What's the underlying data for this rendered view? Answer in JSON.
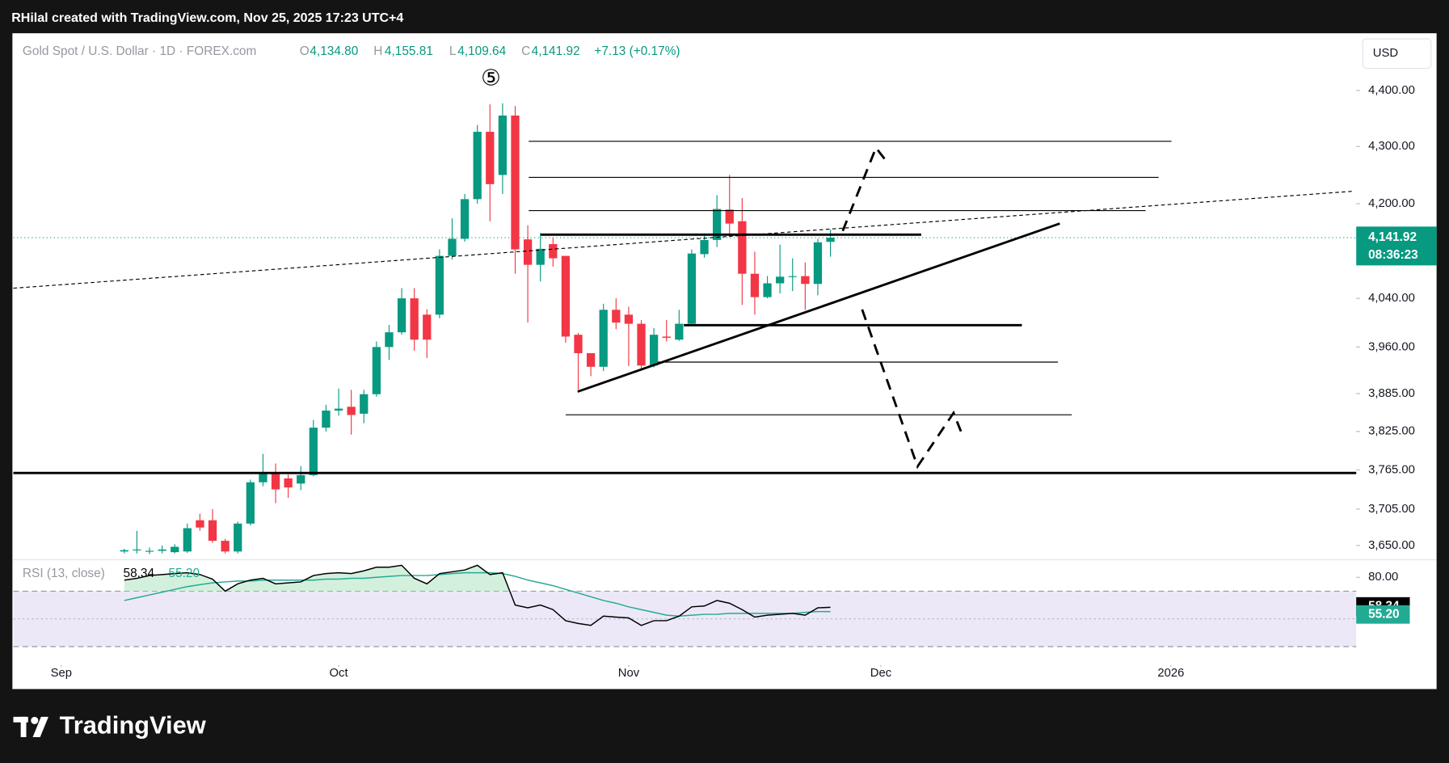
{
  "header": {
    "attribution": "RHilal created with TradingView.com, Nov 25, 2025 17:23 UTC+4",
    "logo": "TradingView"
  },
  "chart_data": [
    {
      "type": "candlestick",
      "symbol": "Gold Spot / U.S. Dollar · 1D · FOREX.com",
      "ohlc_letters": [
        "O",
        "H",
        "L",
        "C"
      ],
      "ohlc_value_labels": [
        "4,134.80",
        "4,155.81",
        "4,109.64",
        "4,141.92"
      ],
      "change_label": "+7.13 (+0.17%)",
      "currency": "USD",
      "annotation": "⑤",
      "log_scale": true,
      "up_color": "#089981",
      "down_color": "#f23645",
      "last_price": {
        "value": 4141.92,
        "label": "4,141.92"
      },
      "countdown": "08:36:23",
      "xlim": [
        -3.8,
        102.7
      ],
      "ylim": [
        3630,
        4503
      ],
      "yticks": [
        {
          "value": 4400,
          "label": "4,400.00"
        },
        {
          "value": 4300,
          "label": "4,300.00"
        },
        {
          "value": 4200,
          "label": "4,200.00"
        },
        {
          "value": 4040,
          "label": "4,040.00"
        },
        {
          "value": 3960,
          "label": "3,960.00"
        },
        {
          "value": 3885,
          "label": "3,885.00"
        },
        {
          "value": 3825,
          "label": "3,825.00"
        },
        {
          "value": 3765,
          "label": "3,765.00"
        },
        {
          "value": 3705,
          "label": "3,705.00"
        },
        {
          "value": 3650,
          "label": "3,650.00"
        }
      ],
      "x": [
        5,
        6,
        7,
        8,
        9,
        10,
        11,
        12,
        13,
        14,
        15,
        16,
        17,
        18,
        19,
        20,
        21,
        22,
        23,
        24,
        25,
        26,
        27,
        28,
        29,
        30,
        31,
        32,
        33,
        34,
        35,
        36,
        37,
        38,
        39,
        40,
        41,
        42,
        43,
        44,
        45,
        46,
        47,
        48,
        49,
        50,
        51,
        52,
        53,
        54,
        55,
        56,
        57,
        58,
        59,
        60,
        61
      ],
      "open": [
        3641,
        3643,
        3641,
        3642,
        3640,
        3641,
        3688,
        3688,
        3657,
        3641,
        3683,
        3746,
        3760,
        3752,
        3744,
        3757,
        3831,
        3858,
        3864,
        3853,
        3884,
        3960,
        3984,
        4040,
        4013,
        4013,
        4111,
        4140,
        4208,
        4326,
        4250,
        4355,
        4139,
        4096,
        4131,
        4111,
        3980,
        3950,
        3928,
        4021,
        4013,
        3998,
        3930,
        3977,
        3972,
        3998,
        4114,
        4138,
        4190,
        4170,
        4081,
        4042,
        4065,
        4076,
        4077,
        4064,
        4134.8
      ],
      "high": [
        3645,
        3672,
        3647,
        3650,
        3652,
        3683,
        3698,
        3705,
        3660,
        3686,
        3750,
        3790,
        3775,
        3758,
        3771,
        3843,
        3867,
        3893,
        3891,
        3891,
        3969,
        3996,
        4057,
        4057,
        4022,
        4122,
        4175,
        4217,
        4338,
        4375,
        4377,
        4372,
        4163,
        4150,
        4142,
        4111,
        3983,
        3950,
        4031,
        4040,
        4026,
        4004,
        3991,
        4004,
        4021,
        4122,
        4146,
        4215,
        4250,
        4210,
        4118,
        4077,
        4130,
        4107,
        4100,
        4140,
        4155.81
      ],
      "low": [
        3638,
        3638,
        3637,
        3638,
        3638,
        3639,
        3672,
        3654,
        3638,
        3638,
        3680,
        3740,
        3714,
        3722,
        3734,
        3755,
        3825,
        3850,
        3820,
        3838,
        3880,
        3939,
        3980,
        3954,
        3942,
        4007,
        4105,
        4135,
        4200,
        4170,
        4217,
        4081,
        4000,
        4068,
        4093,
        3967,
        3891,
        3913,
        3921,
        3989,
        3929,
        3925,
        3927,
        3969,
        3970,
        3996,
        4108,
        4126,
        4143,
        4029,
        4013,
        4040,
        4048,
        4052,
        4021,
        4045,
        4109.64
      ],
      "close": [
        3643,
        3644,
        3642,
        3644,
        3648,
        3676,
        3677,
        3657,
        3641,
        3683,
        3746,
        3760,
        3735,
        3738,
        3757,
        3831,
        3858,
        3861,
        3851,
        3884,
        3960,
        3984,
        4040,
        3972,
        3972,
        4111,
        4140,
        4208,
        4326,
        4234,
        4355,
        4122,
        4096,
        4123,
        4107,
        3977,
        3950,
        3928,
        4021,
        4000,
        3998,
        3930,
        3980,
        3975,
        3998,
        4115,
        4138,
        4191,
        4166,
        4081,
        4042,
        4065,
        4076,
        4077,
        4064,
        4134,
        4141.92
      ]
    },
    {
      "type": "line",
      "title": "RSI (13, close)",
      "xlim": [
        -3.8,
        102.7
      ],
      "ylim": [
        22,
        92
      ],
      "yticks": [
        {
          "value": 80,
          "label": "80.00"
        }
      ],
      "band": [
        30,
        70
      ],
      "midline": 50,
      "band_color": "#ede8f7",
      "xticks": [
        {
          "value": 0,
          "label": "Sep"
        },
        {
          "value": 22,
          "label": "Oct"
        },
        {
          "value": 45,
          "label": "Nov"
        },
        {
          "value": 65,
          "label": "Dec"
        },
        {
          "value": 88,
          "label": "2026"
        }
      ],
      "x": [
        5,
        6,
        7,
        8,
        9,
        10,
        11,
        12,
        13,
        14,
        15,
        16,
        17,
        18,
        19,
        20,
        21,
        22,
        23,
        24,
        25,
        26,
        27,
        28,
        29,
        30,
        31,
        32,
        33,
        34,
        35,
        36,
        37,
        38,
        39,
        40,
        41,
        42,
        43,
        44,
        45,
        46,
        47,
        48,
        49,
        50,
        51,
        52,
        53,
        54,
        55,
        56,
        57,
        58,
        59,
        60,
        61
      ],
      "series": [
        {
          "color": "#000000",
          "legend_value": "58.34",
          "values": [
            78.0,
            79.3,
            81.3,
            82,
            82.7,
            83.3,
            82,
            78.7,
            70,
            75.3,
            78,
            79.3,
            75.3,
            76,
            76.7,
            81.3,
            82.7,
            83.3,
            82.7,
            84.7,
            87.3,
            87.3,
            88.7,
            79.3,
            75.3,
            82.7,
            84,
            85.3,
            88.7,
            82,
            83.3,
            60,
            58,
            60,
            56.7,
            48.7,
            46.7,
            45.3,
            52,
            51.3,
            50.7,
            45.3,
            48.7,
            48.7,
            52,
            58.7,
            59.3,
            63.3,
            61.3,
            56.7,
            51.3,
            52.7,
            53.3,
            54,
            52.7,
            58,
            58.34
          ]
        },
        {
          "color": "#22ab94",
          "legend_value": "55.20",
          "values": [
            63.3,
            65.3,
            67.3,
            69.3,
            71.3,
            73.3,
            74.7,
            76,
            76.7,
            77.3,
            77.3,
            78,
            78,
            78,
            78,
            78,
            78.7,
            78.7,
            79.3,
            79.3,
            80,
            80.7,
            81.3,
            81.3,
            81.3,
            82,
            82.7,
            83.3,
            83.3,
            83.3,
            82.7,
            80.7,
            78,
            76,
            74,
            71.3,
            68.7,
            66,
            63.3,
            61.3,
            58.7,
            56.7,
            54.7,
            52.7,
            52,
            52.7,
            53.3,
            53.3,
            54,
            54,
            54,
            54,
            54,
            54,
            54.7,
            55.3,
            55.2
          ]
        }
      ]
    }
  ]
}
